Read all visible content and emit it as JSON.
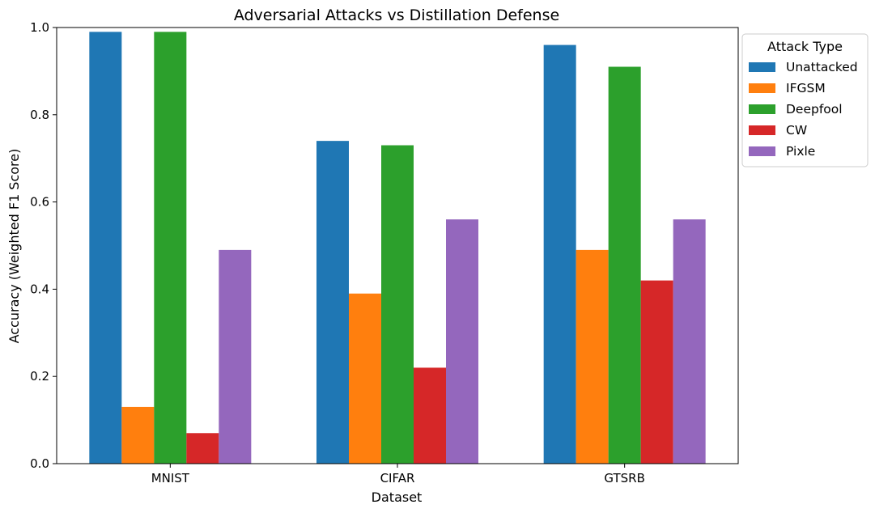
{
  "chart_data": {
    "type": "bar",
    "title": "Adversarial Attacks vs Distillation Defense",
    "xlabel": "Dataset",
    "ylabel": "Accuracy (Weighted F1 Score)",
    "categories": [
      "MNIST",
      "CIFAR",
      "GTSRB"
    ],
    "ylim": [
      0,
      1.0
    ],
    "yticks": [
      "0.0",
      "0.2",
      "0.4",
      "0.6",
      "0.8",
      "1.0"
    ],
    "grid": false,
    "legend": {
      "title": "Attack Type",
      "placement": "outside-right-top"
    },
    "series": [
      {
        "name": "Unattacked",
        "color": "#1f77b4",
        "values": [
          0.99,
          0.74,
          0.96
        ]
      },
      {
        "name": "IFGSM",
        "color": "#ff7f0e",
        "values": [
          0.13,
          0.39,
          0.49
        ]
      },
      {
        "name": "Deepfool",
        "color": "#2ca02c",
        "values": [
          0.99,
          0.73,
          0.91
        ]
      },
      {
        "name": "CW",
        "color": "#d62728",
        "values": [
          0.07,
          0.22,
          0.42
        ]
      },
      {
        "name": "Pixle",
        "color": "#9467bd",
        "values": [
          0.49,
          0.56,
          0.56
        ]
      }
    ]
  }
}
